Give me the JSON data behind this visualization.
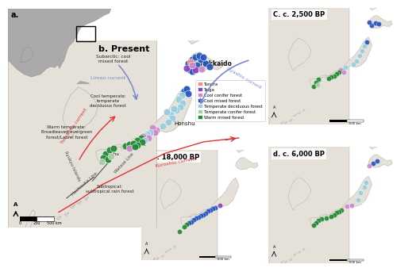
{
  "panels": {
    "a": {
      "label": "a."
    },
    "b": {
      "label": "b. Present"
    },
    "c": {
      "label": "C. c. 2,500 BP"
    },
    "d": {
      "label": "d. c. 6,000 BP"
    },
    "e": {
      "label": "e c. 18,000 BP"
    }
  },
  "legend_entries": [
    {
      "label": "Tundra",
      "color": "#FF8888"
    },
    {
      "label": "Taiga",
      "color": "#8844BB"
    },
    {
      "label": "Cool conifer forest",
      "color": "#CC88CC"
    },
    {
      "label": "Cool mixed forest",
      "color": "#2255BB"
    },
    {
      "label": "Temperate deciduous forest",
      "color": "#99CCDD"
    },
    {
      "label": "Temperate conifer forest",
      "color": "#AACCAA"
    },
    {
      "label": "Warm mixed forest",
      "color": "#228833"
    }
  ],
  "colors": {
    "tundra": "#FF8888",
    "taiga": "#8844BB",
    "cool_con": "#CC88CC",
    "cool_mix": "#2255BB",
    "temp_dec": "#99CCDD",
    "temp_con": "#AACCAA",
    "warm_mix": "#228833"
  },
  "land_color": "#E5E1D8",
  "sea_color": "#F0F4F8",
  "border_color": "#AAAAAA",
  "current_blue": "#7788CC",
  "current_red": "#DD3333",
  "text_color": "#333333"
}
